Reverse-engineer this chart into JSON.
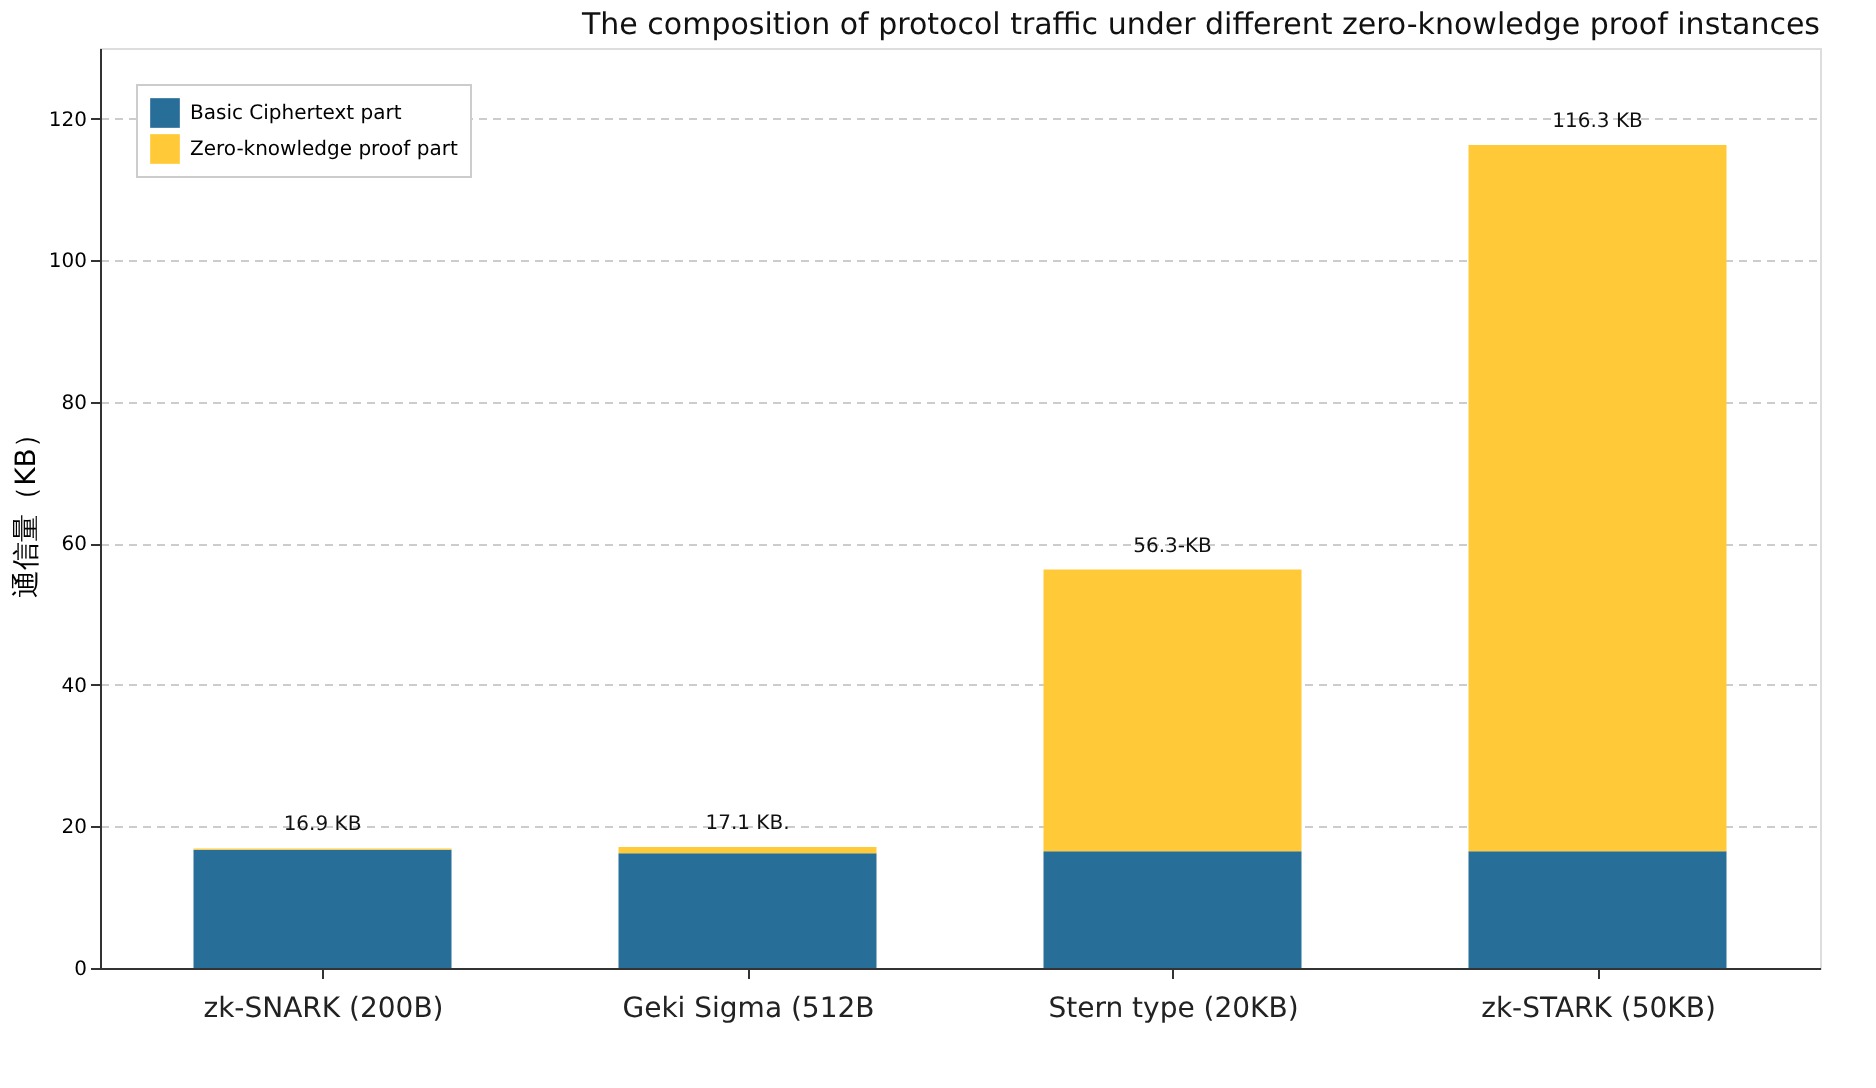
{
  "chart_data": {
    "type": "bar",
    "title": "The composition of protocol traffic under different zero-knowledge proof instances",
    "ylabel": "通信量（KB）",
    "categories": [
      "zk-SNARK (200B)",
      "Geki Sigma (512B",
      "Stern type (20KB)",
      "zk-STARK (50KB)"
    ],
    "stacked": true,
    "series": [
      {
        "name": "Basic Ciphertext part",
        "color": "#276e99",
        "values": [
          16.7,
          16.2,
          16.5,
          16.5
        ]
      },
      {
        "name": "Zero-knowledge proof part",
        "color": "#ffc937",
        "values": [
          0.2,
          0.9,
          39.8,
          99.8
        ]
      }
    ],
    "totals": [
      "16.9 KB",
      "17.1 KB.",
      "56.3-KB",
      "116.3 KB"
    ],
    "ylim": [
      0,
      130
    ],
    "yticks": [
      0,
      20,
      40,
      60,
      80,
      100,
      120
    ],
    "grid": "y",
    "legend": "top left"
  }
}
